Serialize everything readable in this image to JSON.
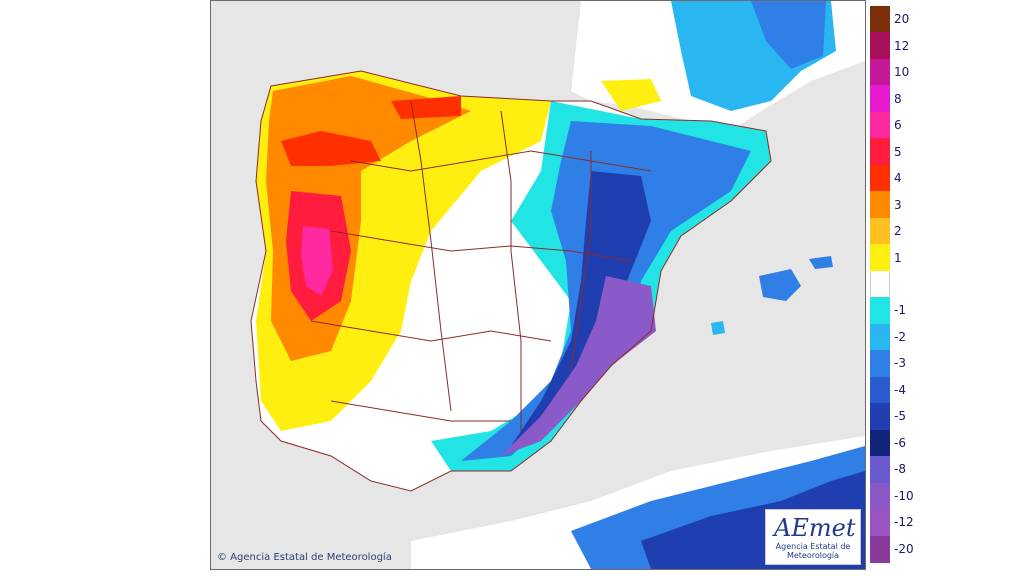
{
  "map": {
    "copyright": "© Agencia Estatal de Meteorología",
    "logo": {
      "name": "AEmet",
      "subtitle": "Agencia Estatal de Meteorología"
    }
  },
  "legend": {
    "entries": [
      {
        "label": "20",
        "color": "#7a2f0a"
      },
      {
        "label": "12",
        "color": "#a8105a"
      },
      {
        "label": "10",
        "color": "#c8189a"
      },
      {
        "label": "8",
        "color": "#e81ad0"
      },
      {
        "label": "6",
        "color": "#ff2aa0"
      },
      {
        "label": "5",
        "color": "#ff1c3c"
      },
      {
        "label": "4",
        "color": "#ff3000"
      },
      {
        "label": "3",
        "color": "#ff8a00"
      },
      {
        "label": "2",
        "color": "#ffc020"
      },
      {
        "label": "1",
        "color": "#ffef10"
      },
      {
        "label": "",
        "color": "#ffffff"
      },
      {
        "label": "-1",
        "color": "#22e4e4"
      },
      {
        "label": "-2",
        "color": "#2ab6f0"
      },
      {
        "label": "-3",
        "color": "#2f7fe6"
      },
      {
        "label": "-4",
        "color": "#2a5bd0"
      },
      {
        "label": "-5",
        "color": "#1f3fb0"
      },
      {
        "label": "-6",
        "color": "#14247a"
      },
      {
        "label": "-8",
        "color": "#6a5ad0"
      },
      {
        "label": "-10",
        "color": "#8a5ac8"
      },
      {
        "label": "-12",
        "color": "#9a55c0"
      },
      {
        "label": "-20",
        "color": "#8a3a9a"
      }
    ]
  },
  "colors": {
    "sea": "#e6e6e6",
    "border": "#8b2a2a",
    "land_neutral": "#ffffff"
  }
}
